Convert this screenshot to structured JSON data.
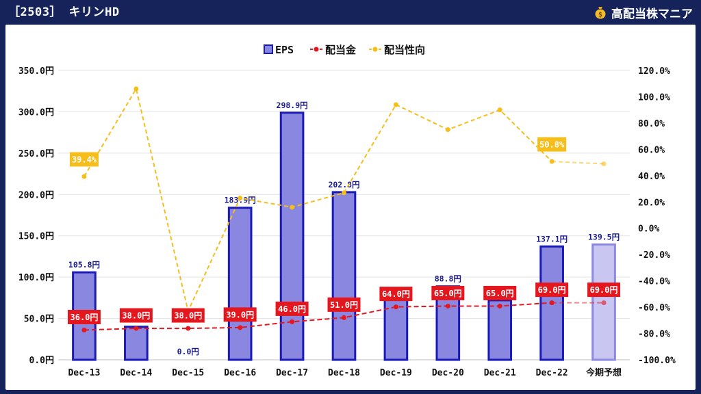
{
  "header": {
    "title": "［2503］ キリンHD",
    "brand": "高配当株マニア",
    "brand_icon": "money-bag-icon"
  },
  "colors": {
    "eps_fill": "#8a87e0",
    "eps_stroke": "#1a1ab8",
    "forecast_fill": "#c9c6f2",
    "forecast_stroke": "#8c88e0",
    "dividend": "#e4161e",
    "payout": "#f5be1a",
    "background": "#16235a"
  },
  "chart_data": {
    "type": "bar",
    "categories": [
      "Dec-13",
      "Dec-14",
      "Dec-15",
      "Dec-16",
      "Dec-17",
      "Dec-18",
      "Dec-19",
      "Dec-20",
      "Dec-21",
      "Dec-22",
      "今期予想"
    ],
    "legend": [
      "EPS",
      "配当金",
      "配当性向"
    ],
    "legend_position": "top-center",
    "series": [
      {
        "name": "EPS",
        "type": "bar",
        "axis": "left",
        "values": [
          105.8,
          40.0,
          0.0,
          183.9,
          298.9,
          202.8,
          82.0,
          88.8,
          72.0,
          137.1,
          139.5
        ],
        "labels": [
          "105.8円",
          "",
          "0.0円",
          "183.9円",
          "298.9円",
          "202.8円",
          "",
          "88.8円",
          "",
          "137.1円",
          "139.5円"
        ]
      },
      {
        "name": "配当金",
        "type": "line",
        "axis": "left",
        "values": [
          36.0,
          38.0,
          38.0,
          39.0,
          46.0,
          51.0,
          64.0,
          65.0,
          65.0,
          69.0,
          69.0
        ],
        "labels": [
          "36.0円",
          "38.0円",
          "38.0円",
          "39.0円",
          "46.0円",
          "51.0円",
          "64.0円",
          "65.0円",
          "65.0円",
          "69.0円",
          "69.0円"
        ]
      },
      {
        "name": "配当性向",
        "type": "line",
        "axis": "right",
        "values": [
          39.4,
          106.0,
          -63.0,
          23.0,
          16.0,
          27.0,
          94.0,
          75.0,
          90.0,
          50.8,
          49.0
        ],
        "labels": [
          "39.4%",
          "",
          "",
          "",
          "",
          "",
          "",
          "",
          "",
          "50.8%",
          ""
        ]
      }
    ],
    "y_left": {
      "min": 0,
      "max": 350,
      "ticks": [
        "0.0円",
        "50.0円",
        "100.0円",
        "150.0円",
        "200.0円",
        "250.0円",
        "300.0円",
        "350.0円"
      ]
    },
    "y_right": {
      "min": -100,
      "max": 120,
      "ticks": [
        "-100.0%",
        "-80.0%",
        "-60.0%",
        "-40.0%",
        "-20.0%",
        "0.0%",
        "20.0%",
        "40.0%",
        "60.0%",
        "80.0%",
        "100.0%",
        "120.0%"
      ]
    },
    "grid": true
  }
}
